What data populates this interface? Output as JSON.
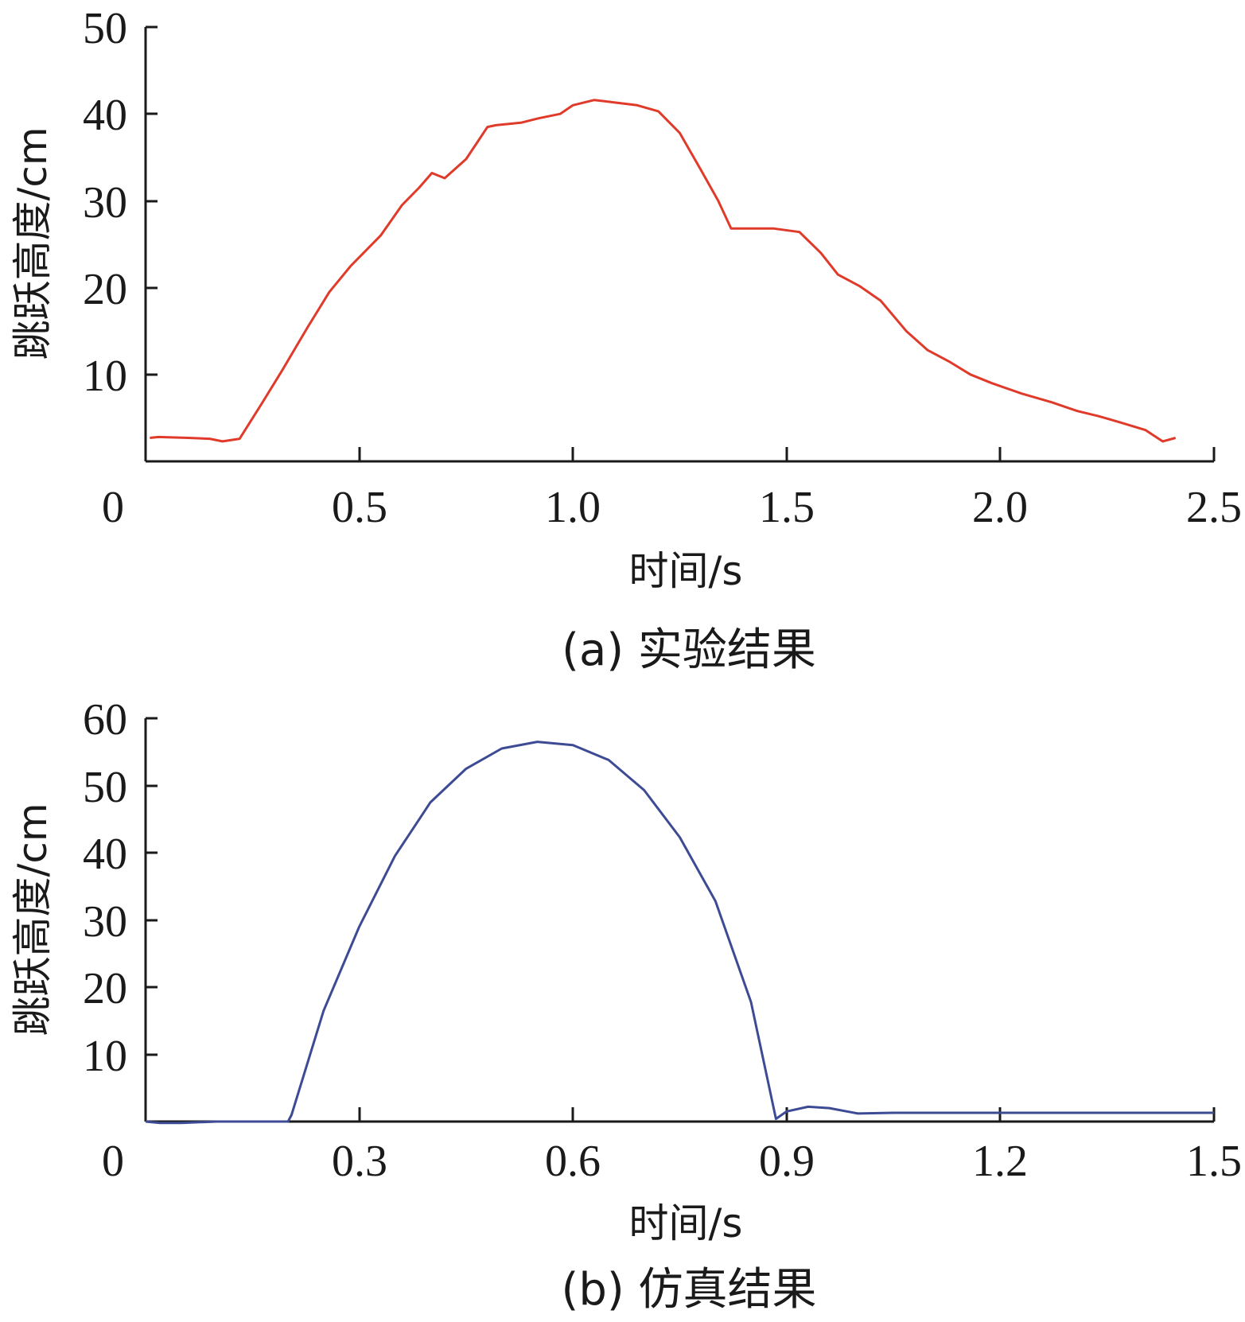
{
  "chart_data": [
    {
      "type": "line",
      "caption": "(a)  实验结果",
      "xlabel": "时间/s",
      "ylabel": "跳跃高度/cm",
      "xlim": [
        0,
        2.5
      ],
      "ylim": [
        0,
        50
      ],
      "x_ticks": [
        "0",
        "0.5",
        "1.0",
        "1.5",
        "2.0",
        "2.5"
      ],
      "y_ticks": [
        "10",
        "20",
        "30",
        "40",
        "50"
      ],
      "series": [
        {
          "color": "#e03a2a",
          "x": [
            0.01,
            0.03,
            0.1,
            0.15,
            0.18,
            0.22,
            0.27,
            0.32,
            0.38,
            0.43,
            0.48,
            0.55,
            0.6,
            0.64,
            0.67,
            0.7,
            0.75,
            0.8,
            0.82,
            0.88,
            0.92,
            0.97,
            1.0,
            1.05,
            1.1,
            1.15,
            1.2,
            1.25,
            1.3,
            1.34,
            1.37,
            1.42,
            1.47,
            1.53,
            1.58,
            1.62,
            1.67,
            1.72,
            1.78,
            1.83,
            1.88,
            1.93,
            1.98,
            2.05,
            2.12,
            2.18,
            2.23,
            2.28,
            2.34,
            2.38,
            2.41
          ],
          "y": [
            2.7,
            2.8,
            2.7,
            2.6,
            2.3,
            2.6,
            6.5,
            10.5,
            15.5,
            19.5,
            22.5,
            26.0,
            29.5,
            31.5,
            33.2,
            32.6,
            34.8,
            38.5,
            38.7,
            39.0,
            39.5,
            40.0,
            41.0,
            41.6,
            41.3,
            41.0,
            40.3,
            37.8,
            33.5,
            30.0,
            26.8,
            26.8,
            26.8,
            26.4,
            24.0,
            21.5,
            20.2,
            18.5,
            15.0,
            12.8,
            11.5,
            10.0,
            9.0,
            7.8,
            6.8,
            5.8,
            5.2,
            4.5,
            3.6,
            2.3,
            2.7
          ]
        }
      ]
    },
    {
      "type": "line",
      "caption": "(b)  仿真结果",
      "xlabel": "时间/s",
      "ylabel": "跳跃高度/cm",
      "xlim": [
        0,
        1.5
      ],
      "ylim": [
        0,
        60
      ],
      "x_ticks": [
        "0",
        "0.3",
        "0.6",
        "0.9",
        "1.2",
        "1.5"
      ],
      "y_ticks": [
        "10",
        "20",
        "30",
        "40",
        "50",
        "60"
      ],
      "series": [
        {
          "color": "#3d4a94",
          "x": [
            0.0,
            0.02,
            0.05,
            0.1,
            0.15,
            0.2,
            0.205,
            0.25,
            0.3,
            0.35,
            0.4,
            0.45,
            0.5,
            0.55,
            0.6,
            0.65,
            0.7,
            0.75,
            0.8,
            0.85,
            0.885,
            0.9,
            0.93,
            0.96,
            0.99,
            1.0,
            1.05,
            1.2,
            1.35,
            1.5
          ],
          "y": [
            0.0,
            -0.2,
            -0.2,
            0.0,
            0.0,
            0.0,
            1.0,
            16.5,
            29.0,
            39.5,
            47.5,
            52.5,
            55.5,
            56.5,
            56.0,
            53.8,
            49.3,
            42.3,
            32.8,
            17.8,
            0.4,
            1.5,
            2.2,
            2.0,
            1.4,
            1.2,
            1.3,
            1.3,
            1.3,
            1.3
          ]
        }
      ]
    }
  ]
}
